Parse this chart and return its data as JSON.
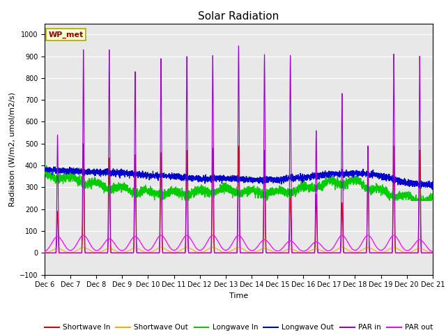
{
  "title": "Solar Radiation",
  "xlabel": "Time",
  "ylabel": "Radiation (W/m2, umol/m2/s)",
  "ylim": [
    -100,
    1050
  ],
  "yticks": [
    -100,
    0,
    100,
    200,
    300,
    400,
    500,
    600,
    700,
    800,
    900,
    1000
  ],
  "station_label": "WP_met",
  "background_color": "#e8e8e8",
  "series_colors": {
    "shortwave_in": "#dd0000",
    "shortwave_out": "#ffaa00",
    "longwave_in": "#00cc00",
    "longwave_out": "#0000cc",
    "par_in": "#9900cc",
    "par_out": "#ff00ff"
  },
  "legend_labels": [
    "Shortwave In",
    "Shortwave Out",
    "Longwave In",
    "Longwave Out",
    "PAR in",
    "PAR out"
  ],
  "n_days": 15,
  "pts_per_day": 288
}
